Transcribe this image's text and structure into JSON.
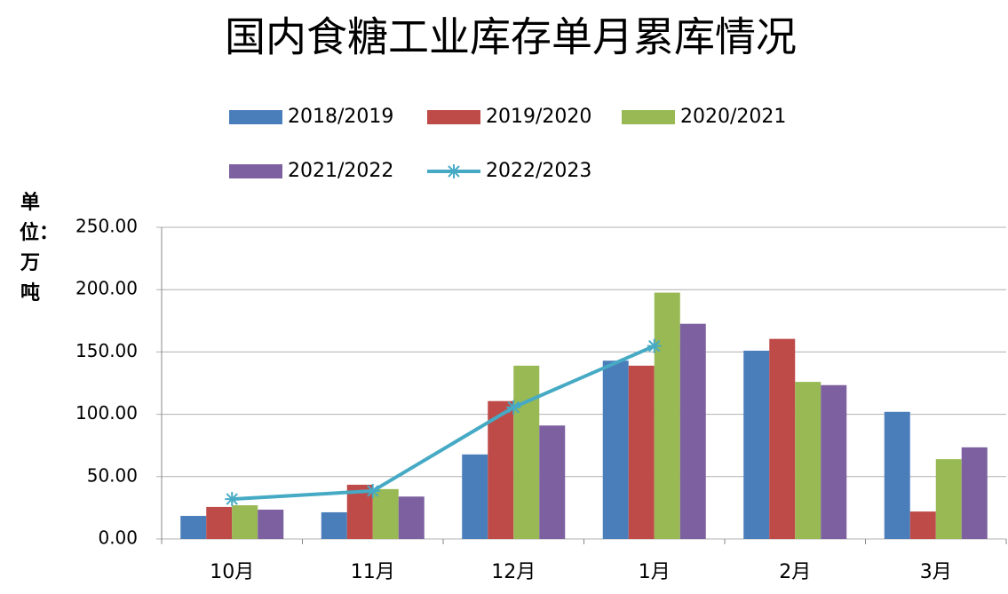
{
  "chart_data": {
    "type": "bar",
    "title": "国内食糖工业库存单月累库情况",
    "y_label": "单位：万吨",
    "categories": [
      "10月",
      "11月",
      "12月",
      "1月",
      "2月",
      "3月"
    ],
    "series": [
      {
        "name": "2018/2019",
        "color": "#4a7ebb",
        "type": "bar",
        "values": [
          18.5,
          21.4,
          67.8,
          143,
          151,
          102
        ]
      },
      {
        "name": "2019/2020",
        "color": "#be4b48",
        "type": "bar",
        "values": [
          25.7,
          43.5,
          110.6,
          139,
          160.5,
          22
        ]
      },
      {
        "name": "2020/2021",
        "color": "#98b954",
        "type": "bar",
        "values": [
          27,
          40,
          139,
          197.6,
          126,
          64
        ]
      },
      {
        "name": "2021/2022",
        "color": "#7d60a0",
        "type": "bar",
        "values": [
          23.5,
          34,
          91,
          172.6,
          123.4,
          73.5
        ]
      },
      {
        "name": "2022/2023",
        "color": "#46aac5",
        "type": "line",
        "values": [
          32,
          38.5,
          105.6,
          154.8,
          null,
          null
        ]
      }
    ],
    "ylim": [
      0,
      250
    ],
    "yticks": [
      {
        "value": 0,
        "label": "0.00"
      },
      {
        "value": 50,
        "label": "50.00"
      },
      {
        "value": 100,
        "label": "100.00"
      },
      {
        "value": 150,
        "label": "150.00"
      },
      {
        "value": 200,
        "label": "200.00"
      },
      {
        "value": 250,
        "label": "250.00"
      }
    ],
    "grid": true
  }
}
